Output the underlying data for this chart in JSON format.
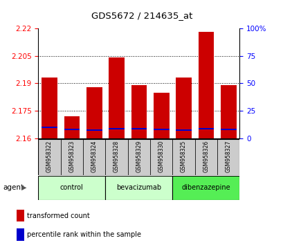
{
  "title": "GDS5672 / 214635_at",
  "samples": [
    "GSM958322",
    "GSM958323",
    "GSM958324",
    "GSM958328",
    "GSM958329",
    "GSM958330",
    "GSM958325",
    "GSM958326",
    "GSM958327"
  ],
  "transformed_counts": [
    2.193,
    2.172,
    2.188,
    2.204,
    2.189,
    2.185,
    2.193,
    2.218,
    2.189
  ],
  "percentile_values": [
    2.1655,
    2.1645,
    2.164,
    2.165,
    2.1648,
    2.1645,
    2.1642,
    2.1648,
    2.1645
  ],
  "groups": [
    {
      "label": "control",
      "start": 0,
      "end": 3,
      "color": "#ccffcc"
    },
    {
      "label": "bevacizumab",
      "start": 3,
      "end": 6,
      "color": "#ccffcc"
    },
    {
      "label": "dibenzazepine",
      "start": 6,
      "end": 9,
      "color": "#55ee55"
    }
  ],
  "bar_color": "#cc0000",
  "percentile_color": "#0000cc",
  "ylim_left": [
    2.16,
    2.22
  ],
  "ylim_right": [
    0,
    100
  ],
  "yticks_left": [
    2.16,
    2.175,
    2.19,
    2.205,
    2.22
  ],
  "yticks_right": [
    0,
    25,
    50,
    75,
    100
  ],
  "bar_width": 0.7,
  "bar_bottom": 2.16
}
